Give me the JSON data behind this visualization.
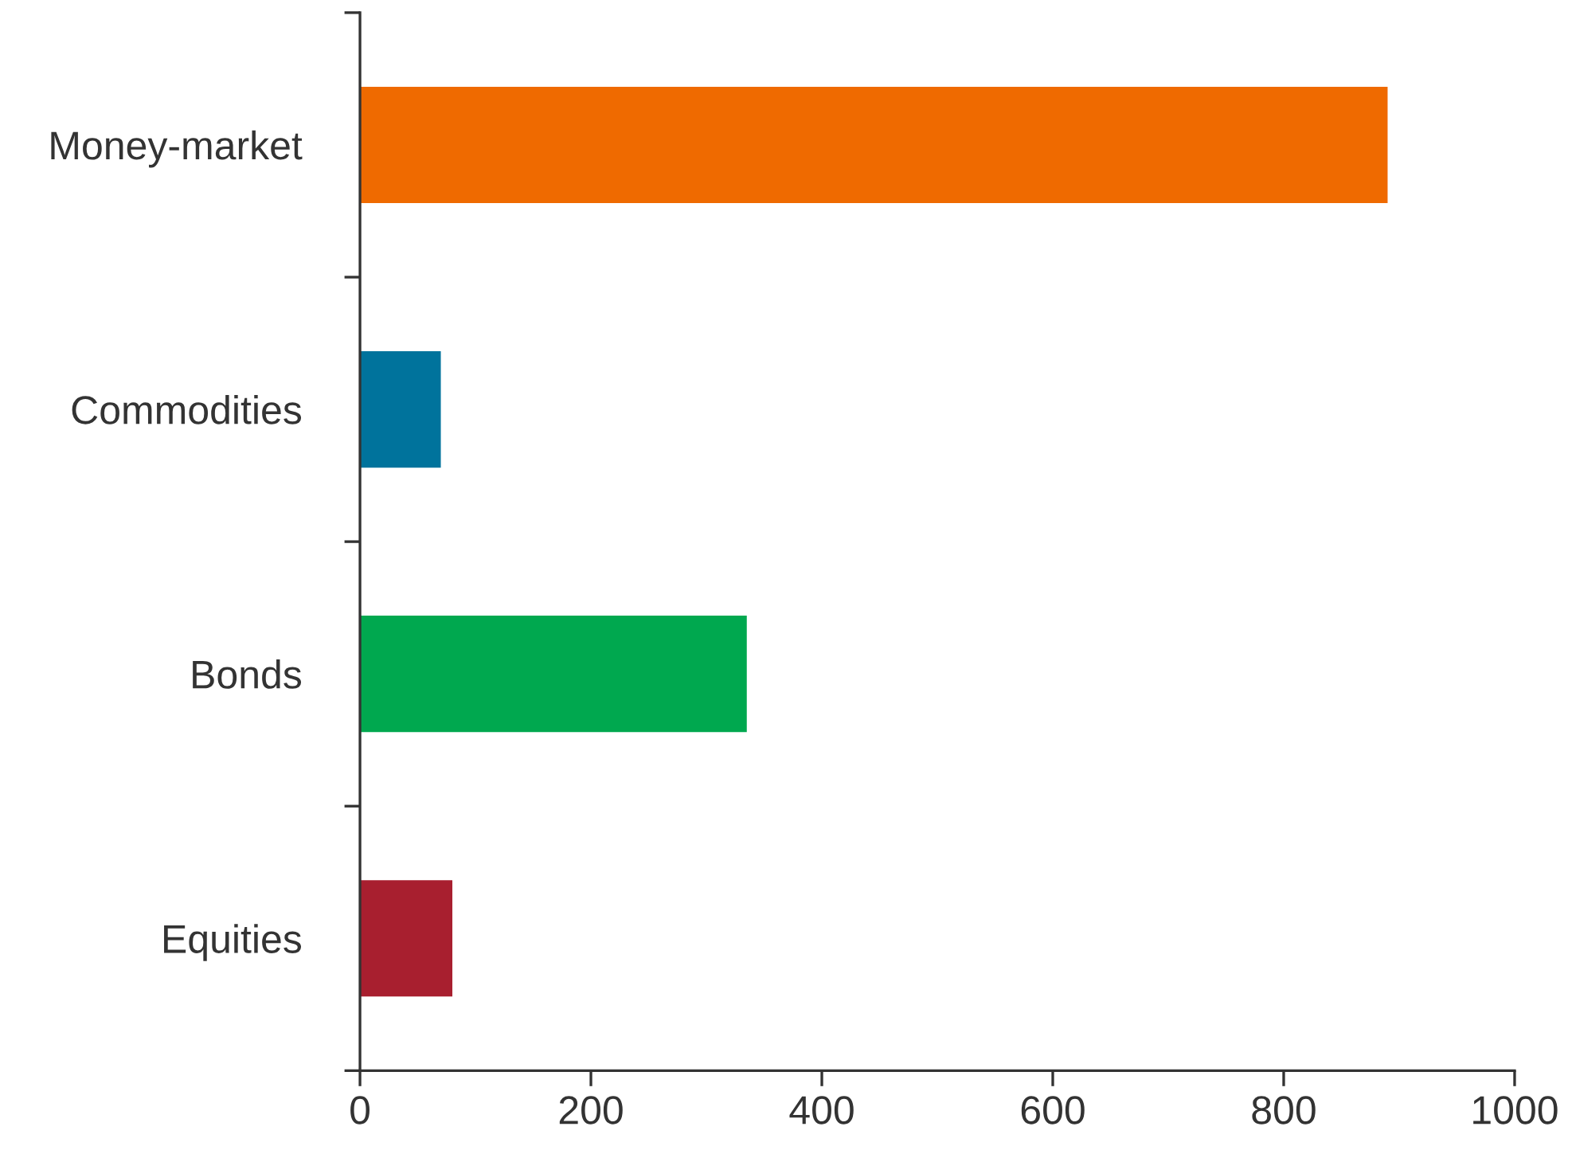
{
  "chart_data": {
    "type": "bar",
    "orientation": "horizontal",
    "categories": [
      "Money-market",
      "Commodities",
      "Bonds",
      "Equities"
    ],
    "values": [
      890,
      70,
      335,
      80
    ],
    "colors": [
      "#ef6a00",
      "#00739c",
      "#00a84f",
      "#a81f2f"
    ],
    "xlim": [
      0,
      1000
    ],
    "xticks": [
      0,
      200,
      400,
      600,
      800,
      1000
    ],
    "grid": false,
    "legend": false
  }
}
